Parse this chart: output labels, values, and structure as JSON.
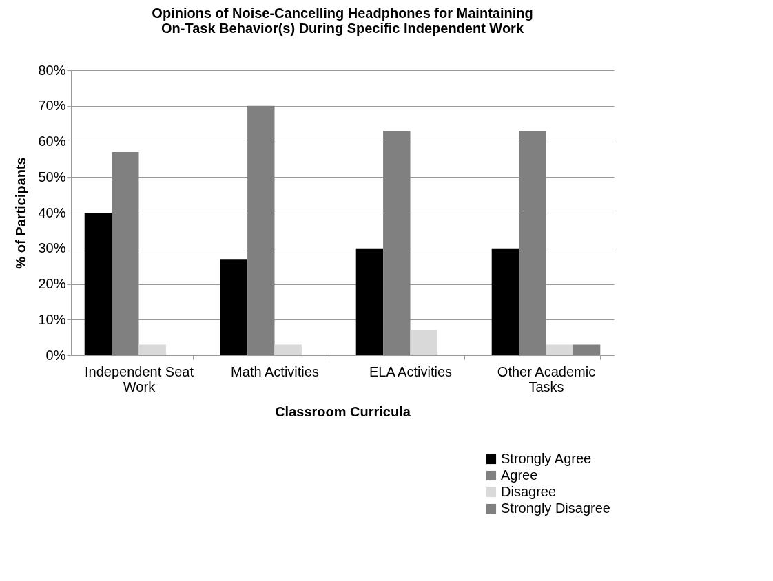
{
  "chart_data": {
    "type": "bar",
    "title": "Opinions of Noise-Cancelling Headphones for Maintaining On-Task Behavior(s) During Specific Independent Work",
    "xlabel": "Classroom Curricula",
    "ylabel": "% of Participants",
    "categories": [
      "Independent Seat Work",
      "Math Activities",
      "ELA Activities",
      "Other Academic Tasks"
    ],
    "series": [
      {
        "name": "Strongly Agree",
        "color": "#000000",
        "values": [
          40,
          27,
          30,
          30
        ]
      },
      {
        "name": "Agree",
        "color": "#808080",
        "values": [
          57,
          70,
          63,
          63
        ]
      },
      {
        "name": "Disagree",
        "color": "#d9d9d9",
        "values": [
          3,
          3,
          7,
          3
        ]
      },
      {
        "name": "Strongly Disagree",
        "color": "#808080",
        "values": [
          null,
          null,
          null,
          3
        ]
      }
    ],
    "ylim": [
      0,
      80
    ],
    "yticks": [
      {
        "value": 0,
        "label": "0%"
      },
      {
        "value": 10,
        "label": "10%"
      },
      {
        "value": 20,
        "label": "20%"
      },
      {
        "value": 30,
        "label": "30%"
      },
      {
        "value": 40,
        "label": "40%"
      },
      {
        "value": 50,
        "label": "50%"
      },
      {
        "value": 60,
        "label": "60%"
      },
      {
        "value": 70,
        "label": "70%"
      },
      {
        "value": 80,
        "label": "80%"
      }
    ],
    "grid": "y",
    "legend": "bottom right"
  }
}
